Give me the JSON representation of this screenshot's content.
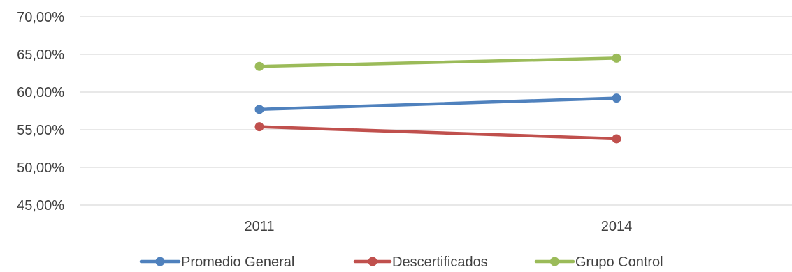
{
  "chart_data": {
    "type": "line",
    "categories": [
      "2011",
      "2014"
    ],
    "series": [
      {
        "name": "Promedio General",
        "values": [
          57.7,
          59.2
        ],
        "color": "#4F81BD"
      },
      {
        "name": "Descertificados",
        "values": [
          55.4,
          53.8
        ],
        "color": "#C0504D"
      },
      {
        "name": "Grupo Control",
        "values": [
          63.4,
          64.5
        ],
        "color": "#9BBB59"
      }
    ],
    "y_ticks": [
      "45,00%",
      "50,00%",
      "55,00%",
      "60,00%",
      "65,00%",
      "70,00%"
    ],
    "ylim": [
      45,
      70
    ],
    "y_unit": "%",
    "grid": "horizontal",
    "grid_color": "#D9D9D9",
    "legend_position": "bottom",
    "title": "",
    "xlabel": "",
    "ylabel": ""
  }
}
